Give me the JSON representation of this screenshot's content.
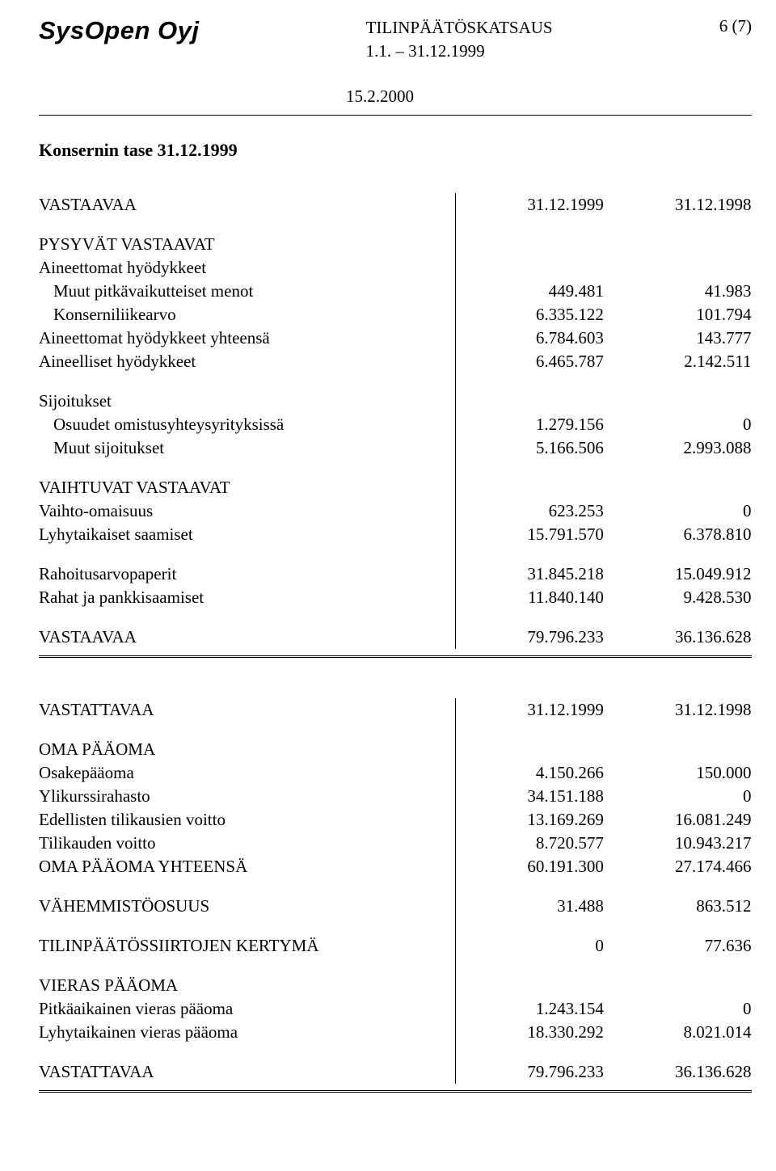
{
  "header": {
    "company": "SysOpen Oyj",
    "doc_title": "TILINPÄÄTÖSKATSAUS",
    "period": "1.1. – 31.12.1999",
    "pagination": "6 (7)",
    "date": "15.2.2000"
  },
  "assets": {
    "section_title": "Konsernin tase 31.12.1999",
    "col_header_label": "VASTAAVAA",
    "col1": "31.12.1999",
    "col2": "31.12.1998",
    "rows": {
      "pysyvat_title": "PYSYVÄT VASTAAVAT",
      "aineettomat_title": "Aineettomat hyödykkeet",
      "muut_pitk": {
        "label": "Muut pitkävaikutteiset menot",
        "v1": "449.481",
        "v2": "41.983"
      },
      "konsernili": {
        "label": "Konserniliikearvo",
        "v1": "6.335.122",
        "v2": "101.794"
      },
      "aineettomat_yht": {
        "label": "Aineettomat hyödykkeet yhteensä",
        "v1": "6.784.603",
        "v2": "143.777"
      },
      "aineelliset": {
        "label": "Aineelliset hyödykkeet",
        "v1": "6.465.787",
        "v2": "2.142.511"
      },
      "sijoitukset_title": "Sijoitukset",
      "osuudet": {
        "label": "Osuudet omistusyhteysyrityksissä",
        "v1": "1.279.156",
        "v2": "0"
      },
      "muut_sij": {
        "label": "Muut sijoitukset",
        "v1": "5.166.506",
        "v2": "2.993.088"
      },
      "vaihtuvat_title": "VAIHTUVAT VASTAAVAT",
      "vaihto_om": {
        "label": "Vaihto-omaisuus",
        "v1": "623.253",
        "v2": "0"
      },
      "lyhyt_saam": {
        "label": "Lyhytaikaiset saamiset",
        "v1": "15.791.570",
        "v2": "6.378.810"
      },
      "rahoitus": {
        "label": "Rahoitusarvopaperit",
        "v1": "31.845.218",
        "v2": "15.049.912"
      },
      "rahat": {
        "label": "Rahat ja pankkisaamiset",
        "v1": "11.840.140",
        "v2": "9.428.530"
      },
      "vastaavaa_total": {
        "label": "VASTAAVAA",
        "v1": "79.796.233",
        "v2": "36.136.628"
      }
    }
  },
  "liabilities": {
    "col_header_label": "VASTATTAVAA",
    "col1": "31.12.1999",
    "col2": "31.12.1998",
    "rows": {
      "oma_title": "OMA PÄÄOMA",
      "osake": {
        "label": "Osakepääoma",
        "v1": "4.150.266",
        "v2": "150.000"
      },
      "ylikurssi": {
        "label": "Ylikurssirahasto",
        "v1": "34.151.188",
        "v2": "0"
      },
      "edellisten": {
        "label": "Edellisten tilikausien voitto",
        "v1": "13.169.269",
        "v2": "16.081.249"
      },
      "tilikauden": {
        "label": "Tilikauden voitto",
        "v1": "8.720.577",
        "v2": "10.943.217"
      },
      "oma_yht": {
        "label": "OMA PÄÄOMA YHTEENSÄ",
        "v1": "60.191.300",
        "v2": "27.174.466"
      },
      "vahemmisto": {
        "label": "VÄHEMMISTÖOSUUS",
        "v1": "31.488",
        "v2": "863.512"
      },
      "tilinp_siirt": {
        "label": "TILINPÄÄTÖSSIIRTOJEN KERTYMÄ",
        "v1": "0",
        "v2": "77.636"
      },
      "vieras_title": "VIERAS PÄÄOMA",
      "pitka_vieras": {
        "label": "Pitkäaikainen vieras pääoma",
        "v1": "1.243.154",
        "v2": "0"
      },
      "lyhyt_vieras": {
        "label": "Lyhytaikainen vieras pääoma",
        "v1": "18.330.292",
        "v2": "8.021.014"
      },
      "vastattavaa_total": {
        "label": "VASTATTAVAA",
        "v1": "79.796.233",
        "v2": "36.136.628"
      }
    }
  }
}
